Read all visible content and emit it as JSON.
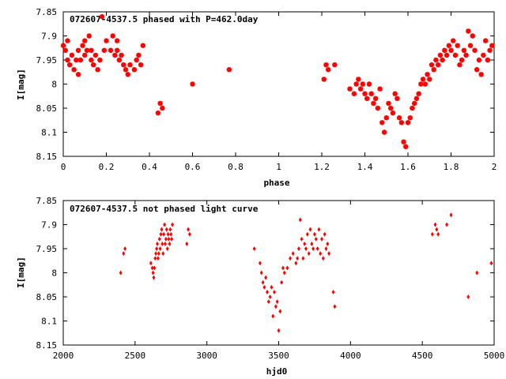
{
  "chart_data": [
    {
      "type": "scatter",
      "title": "072607-4537.5 phased with P=462.0day",
      "xlabel": "phase",
      "ylabel": "I[mag]",
      "xlim": [
        0,
        2
      ],
      "ylim": [
        8.15,
        7.85
      ],
      "y_inverted": true,
      "grid": false,
      "legend": "none",
      "xticks": [
        0,
        0.2,
        0.4,
        0.6,
        0.8,
        1,
        1.2,
        1.4,
        1.6,
        1.8,
        2
      ],
      "xtick_labels": [
        "0",
        "0.2",
        "0.4",
        "0.6",
        "0.8",
        "1",
        "1.2",
        "1.4",
        "1.6",
        "1.8",
        "2"
      ],
      "yticks": [
        7.85,
        7.9,
        7.95,
        8,
        8.05,
        8.1,
        8.15
      ],
      "ytick_labels": [
        "7.85",
        "7.9",
        "7.95",
        "8",
        "8.05",
        "8.1",
        "8.15"
      ],
      "marker_color": "#ff0000",
      "marker": "filled-star",
      "series": [
        {
          "x": [
            0.0,
            0.01,
            0.02,
            0.02,
            0.03,
            0.04,
            0.05,
            0.06,
            0.07,
            0.07,
            0.08,
            0.09,
            0.1,
            0.1,
            0.11,
            0.12,
            0.13,
            0.13,
            0.14,
            0.15,
            0.16,
            0.17,
            0.18,
            0.19,
            0.2,
            0.22,
            0.23,
            0.24,
            0.25,
            0.25,
            0.26,
            0.27,
            0.28,
            0.29,
            0.3,
            0.31,
            0.33,
            0.34,
            0.35,
            0.36,
            0.37,
            0.44,
            0.45,
            0.46,
            0.6,
            0.77,
            1.21,
            1.22,
            1.23,
            1.26,
            1.33,
            1.35,
            1.36,
            1.37,
            1.38,
            1.39,
            1.4,
            1.41,
            1.42,
            1.43,
            1.44,
            1.45,
            1.46,
            1.47,
            1.48,
            1.49,
            1.5,
            1.51,
            1.52,
            1.53,
            1.54,
            1.55,
            1.56,
            1.57,
            1.58,
            1.59,
            1.6,
            1.61,
            1.62,
            1.63,
            1.64,
            1.65,
            1.66,
            1.67,
            1.68,
            1.69,
            1.7,
            1.71,
            1.72,
            1.73,
            1.74,
            1.75,
            1.76,
            1.77,
            1.78,
            1.79,
            1.8,
            1.81,
            1.82,
            1.83,
            1.84,
            1.85,
            1.86,
            1.87,
            1.88,
            1.89,
            1.9,
            1.91,
            1.92,
            1.93,
            1.94,
            1.95,
            1.96,
            1.97,
            1.98,
            1.99
          ],
          "y": [
            7.92,
            7.93,
            7.91,
            7.95,
            7.96,
            7.94,
            7.97,
            7.95,
            7.98,
            7.93,
            7.95,
            7.92,
            7.94,
            7.91,
            7.93,
            7.9,
            7.95,
            7.93,
            7.96,
            7.94,
            7.97,
            7.95,
            7.86,
            7.93,
            7.91,
            7.93,
            7.9,
            7.94,
            7.91,
            7.93,
            7.95,
            7.94,
            7.96,
            7.97,
            7.98,
            7.96,
            7.97,
            7.95,
            7.94,
            7.96,
            7.92,
            8.06,
            8.04,
            8.05,
            8.0,
            7.97,
            7.99,
            7.96,
            7.97,
            7.96,
            8.01,
            8.02,
            8.0,
            7.99,
            8.01,
            8.0,
            8.02,
            8.03,
            8.0,
            8.02,
            8.04,
            8.03,
            8.05,
            8.01,
            8.08,
            8.1,
            8.07,
            8.04,
            8.05,
            8.06,
            8.02,
            8.03,
            8.07,
            8.08,
            8.12,
            8.13,
            8.08,
            8.07,
            8.05,
            8.04,
            8.03,
            8.02,
            8.0,
            7.99,
            8.0,
            7.98,
            7.99,
            7.96,
            7.97,
            7.95,
            7.96,
            7.94,
            7.95,
            7.93,
            7.94,
            7.92,
            7.93,
            7.91,
            7.94,
            7.92,
            7.96,
            7.95,
            7.93,
            7.94,
            7.89,
            7.92,
            7.9,
            7.93,
            7.97,
            7.95,
            7.98,
            7.94,
            7.91,
            7.95,
            7.93,
            7.92
          ]
        }
      ]
    },
    {
      "type": "scatter",
      "title": "072607-4537.5 not phased light curve",
      "xlabel": "hjd0",
      "ylabel": "I[mag]",
      "xlim": [
        2000,
        5000
      ],
      "ylim": [
        8.15,
        7.85
      ],
      "y_inverted": true,
      "grid": false,
      "legend": "none",
      "xticks": [
        2000,
        2500,
        3000,
        3500,
        4000,
        4500,
        5000
      ],
      "xtick_labels": [
        "2000",
        "2500",
        "3000",
        "3500",
        "4000",
        "4500",
        "5000"
      ],
      "yticks": [
        7.85,
        7.9,
        7.95,
        8,
        8.05,
        8.1,
        8.15
      ],
      "ytick_labels": [
        "7.85",
        "7.9",
        "7.95",
        "8",
        "8.05",
        "8.1",
        "8.15"
      ],
      "marker_color": "#ff0000",
      "marker": "diamond",
      "series": [
        {
          "x": [
            2400,
            2420,
            2430,
            2610,
            2620,
            2625,
            2630,
            2635,
            2640,
            2645,
            2650,
            2655,
            2660,
            2665,
            2670,
            2675,
            2680,
            2685,
            2690,
            2695,
            2700,
            2705,
            2710,
            2715,
            2720,
            2725,
            2730,
            2735,
            2740,
            2745,
            2750,
            2755,
            2760,
            2860,
            2870,
            2880,
            3330,
            3370,
            3380,
            3390,
            3400,
            3410,
            3420,
            3430,
            3440,
            3450,
            3460,
            3470,
            3480,
            3490,
            3500,
            3510,
            3520,
            3530,
            3540,
            3560,
            3580,
            3600,
            3620,
            3630,
            3640,
            3650,
            3660,
            3670,
            3680,
            3690,
            3700,
            3710,
            3720,
            3730,
            3740,
            3750,
            3760,
            3770,
            3780,
            3790,
            3800,
            3810,
            3820,
            3830,
            3840,
            3850,
            3880,
            3890,
            4570,
            4590,
            4600,
            4610,
            4670,
            4700,
            4820,
            4880,
            4980
          ],
          "y": [
            8.0,
            7.96,
            7.95,
            7.98,
            7.99,
            8.0,
            8.01,
            7.99,
            7.97,
            7.96,
            7.95,
            7.94,
            7.97,
            7.96,
            7.93,
            7.95,
            7.92,
            7.91,
            7.94,
            7.96,
            7.92,
            7.9,
            7.94,
            7.93,
            7.91,
            7.95,
            7.92,
            7.93,
            7.94,
            7.91,
            7.92,
            7.93,
            7.9,
            7.94,
            7.91,
            7.92,
            7.95,
            7.98,
            8.0,
            8.02,
            8.03,
            8.01,
            8.04,
            8.06,
            8.05,
            8.03,
            8.09,
            8.04,
            8.07,
            8.06,
            8.12,
            8.08,
            8.02,
            7.99,
            8.0,
            7.99,
            7.97,
            7.96,
            7.98,
            7.97,
            7.95,
            7.89,
            7.93,
            7.97,
            7.94,
            7.95,
            7.92,
            7.96,
            7.91,
            7.94,
            7.95,
            7.92,
            7.93,
            7.95,
            7.91,
            7.96,
            7.93,
            7.97,
            7.92,
            7.95,
            7.94,
            7.96,
            8.04,
            8.07,
            7.92,
            7.9,
            7.91,
            7.92,
            7.9,
            7.88,
            8.05,
            8.0,
            7.98
          ]
        }
      ]
    }
  ]
}
